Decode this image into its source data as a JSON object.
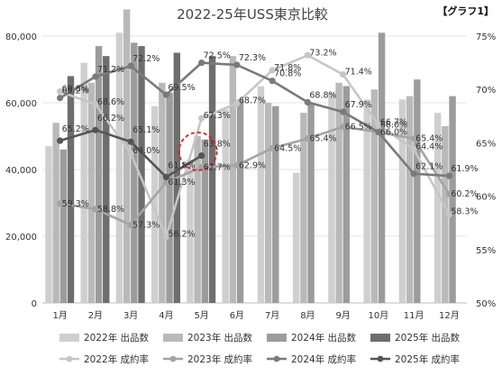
{
  "chart_data": {
    "type": "bar+line",
    "title": "2022-25年USS東京比較",
    "tag": "【グラフ1】",
    "categories": [
      "1月",
      "2月",
      "3月",
      "4月",
      "5月",
      "6月",
      "7月",
      "8月",
      "9月",
      "10月",
      "11月",
      "12月"
    ],
    "y_left": {
      "min": 0,
      "max": 80000,
      "ticks": [
        "0",
        "20,000",
        "40,000",
        "60,000",
        "80,000"
      ]
    },
    "y_right": {
      "min": 50,
      "max": 75,
      "ticks": [
        "50%",
        "55%",
        "60%",
        "65%",
        "70%",
        "75%"
      ]
    },
    "bar_series": [
      {
        "name": "2022年 出品数",
        "color": "#cfcfcf",
        "values": [
          47000,
          72000,
          81000,
          59000,
          43000,
          58000,
          65000,
          39000,
          63000,
          61000,
          61000,
          57000
        ]
      },
      {
        "name": "2023年 出品数",
        "color": "#b9b9b9",
        "values": [
          54000,
          66000,
          88000,
          66000,
          50000,
          74000,
          60000,
          57000,
          66000,
          64000,
          62000,
          53000
        ]
      },
      {
        "name": "2024年 出品数",
        "color": "#9c9c9c",
        "values": [
          46000,
          77000,
          78000,
          63000,
          49000,
          61000,
          59000,
          60000,
          65000,
          81000,
          67000,
          62000
        ]
      },
      {
        "name": "2025年 出品数",
        "color": "#6e6e6e",
        "values": [
          68000,
          74000,
          77000,
          75000,
          74000,
          null,
          null,
          null,
          null,
          null,
          null,
          null
        ]
      }
    ],
    "line_series": [
      {
        "name": "2022年 成約率",
        "color": "#c6c6c6",
        "values": [
          69.8,
          68.6,
          64.0,
          56.2,
          67.3,
          68.7,
          71.8,
          73.2,
          71.4,
          66.7,
          64.4,
          58.3
        ]
      },
      {
        "name": "2023年 成約率",
        "color": "#a4a4a4",
        "values": [
          59.3,
          58.8,
          57.3,
          61.3,
          62.7,
          62.9,
          64.5,
          65.4,
          66.5,
          66.0,
          65.4,
          60.2
        ]
      },
      {
        "name": "2024年 成約率",
        "color": "#7a7a7a",
        "values": [
          69.2,
          71.2,
          72.2,
          69.5,
          72.5,
          72.3,
          70.8,
          68.8,
          67.9,
          66.0,
          62.1,
          61.9
        ]
      },
      {
        "name": "2025年 成約率",
        "color": "#555555",
        "values": [
          65.2,
          66.2,
          65.1,
          61.8,
          63.8,
          null,
          null,
          null,
          null,
          null,
          null,
          null
        ]
      }
    ],
    "data_labels": [
      [
        "69.8%",
        "68.6%",
        "64.0%",
        "56.2%",
        "67.3%",
        "68.7%",
        "71.8%",
        "73.2%",
        "71.4%",
        "66.7%",
        "64.4%",
        "58.3%"
      ],
      [
        "59.3%",
        "58.8%",
        "57.3%",
        "61.3%",
        "62.7%",
        "62.9%",
        "64.5%",
        "65.4%",
        "66.5%",
        "66.0%",
        "65.4%",
        "60.2%"
      ],
      [
        "69.2%",
        "71.2%",
        "72.2%",
        "69.5%",
        "72.5%",
        "72.3%",
        "70.8%",
        "68.8%",
        "67.9%",
        "66.0%",
        "62.1%",
        "61.9%"
      ],
      [
        "65.2%",
        "66.2%",
        "65.1%",
        "61.8%",
        "63.8%",
        "",
        "",
        "",
        "",
        "",
        "",
        ""
      ]
    ],
    "highlight": {
      "category": "5月",
      "style": "red dashed circle"
    },
    "legend": {
      "position": "bottom"
    }
  }
}
